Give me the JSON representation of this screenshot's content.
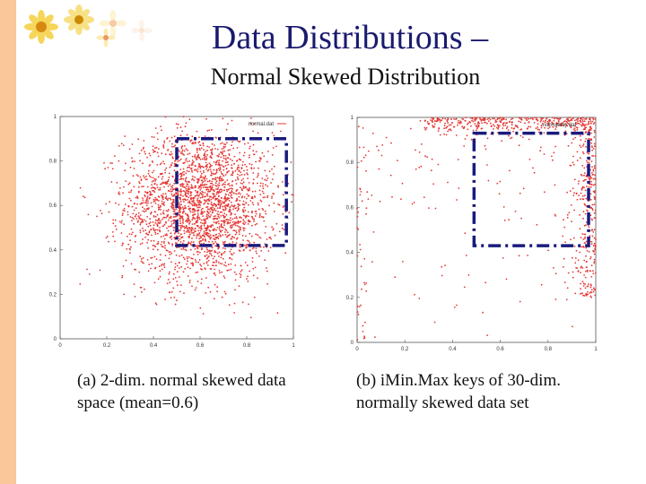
{
  "slide": {
    "title": "Data Distributions –",
    "subtitle": "Normal Skewed Distribution",
    "accent_color": "#f9c79a",
    "title_color": "#1a1a6e",
    "flower_icon_name": "daisy-decoration-icon"
  },
  "captions": {
    "a_line1": "(a)  2-dim. normal skewed data",
    "a_line2": "space (mean=0.6)",
    "b_line1": "(b)  iMin.Max keys of 30-dim.",
    "b_line2": "normally skewed data set"
  },
  "chart_data": [
    {
      "type": "scatter",
      "legend": "normal.dat",
      "legend_placement": "top-right",
      "xlim": [
        0,
        1
      ],
      "ylim": [
        0,
        1
      ],
      "xticks": [
        "0",
        "0.2",
        "0.4",
        "0.6",
        "0.8",
        "1"
      ],
      "yticks": [
        "0",
        "0.2",
        "0.4",
        "0.6",
        "0.8",
        "1"
      ],
      "point_color": "#e53935",
      "grid": false,
      "distribution": {
        "mean": 0.6,
        "approx_std": 0.16,
        "approx_points": 2500
      },
      "highlight_box": {
        "x": [
          0.5,
          0.97
        ],
        "y": [
          0.42,
          0.9
        ],
        "style": "dash-dot",
        "color": "#1a1a7e"
      }
    },
    {
      "type": "scatter",
      "legend": "normalkey.dat",
      "legend_placement": "top-right",
      "xlim": [
        0,
        1
      ],
      "ylim": [
        0,
        1
      ],
      "xticks": [
        "0",
        "0.2",
        "0.4",
        "0.6",
        "0.8",
        "1"
      ],
      "yticks": [
        "0",
        "0.2",
        "0.4",
        "0.6",
        "0.8",
        "1"
      ],
      "point_color": "#e53935",
      "grid": false,
      "distribution": {
        "description_values": "concentrated near y=1 and x=1 edges",
        "approx_points": 900
      },
      "highlight_box": {
        "x": [
          0.49,
          0.97
        ],
        "y": [
          0.43,
          0.93
        ],
        "style": "dash-dot",
        "color": "#1a1a7e"
      }
    }
  ]
}
